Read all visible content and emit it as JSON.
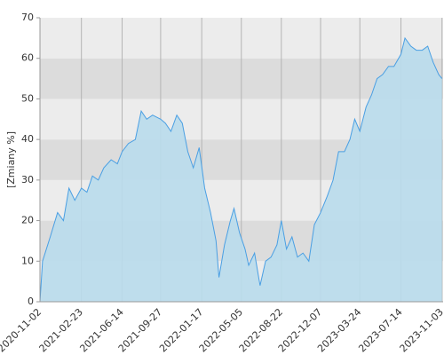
{
  "chart_data": {
    "type": "area",
    "y_label": "[Zmiany %]",
    "x": [
      "2020-11-02",
      "2020-11-09",
      "2020-11-30",
      "2020-12-20",
      "2021-01-05",
      "2021-01-20",
      "2021-02-05",
      "2021-02-23",
      "2021-03-10",
      "2021-03-25",
      "2021-04-10",
      "2021-04-25",
      "2021-05-15",
      "2021-06-01",
      "2021-06-14",
      "2021-07-01",
      "2021-07-20",
      "2021-08-05",
      "2021-08-20",
      "2021-09-05",
      "2021-09-27",
      "2021-10-10",
      "2021-10-25",
      "2021-11-10",
      "2021-11-25",
      "2021-12-10",
      "2021-12-25",
      "2022-01-10",
      "2022-01-25",
      "2022-02-10",
      "2022-02-25",
      "2022-03-05",
      "2022-03-20",
      "2022-04-05",
      "2022-04-15",
      "2022-04-30",
      "2022-05-15",
      "2022-05-25",
      "2022-06-10",
      "2022-06-25",
      "2022-07-10",
      "2022-07-25",
      "2022-08-10",
      "2022-08-22",
      "2022-09-05",
      "2022-09-20",
      "2022-10-05",
      "2022-10-20",
      "2022-11-05",
      "2022-11-20",
      "2022-12-07",
      "2022-12-25",
      "2023-01-10",
      "2023-01-25",
      "2023-02-10",
      "2023-02-25",
      "2023-03-10",
      "2023-03-24",
      "2023-04-10",
      "2023-04-25",
      "2023-05-10",
      "2023-05-25",
      "2023-06-10",
      "2023-06-25",
      "2023-07-14",
      "2023-07-25",
      "2023-08-10",
      "2023-08-25",
      "2023-09-10",
      "2023-09-25",
      "2023-10-10",
      "2023-10-25",
      "2023-11-03"
    ],
    "values": [
      0,
      10,
      16,
      22,
      20,
      28,
      25,
      28,
      27,
      31,
      30,
      33,
      35,
      34,
      37,
      39,
      40,
      47,
      45,
      46,
      45,
      44,
      42,
      46,
      44,
      37,
      33,
      38,
      28,
      22,
      15,
      6,
      14,
      20,
      23,
      17,
      13,
      9,
      12,
      4,
      10,
      11,
      14,
      20,
      13,
      16,
      11,
      12,
      10,
      19,
      22,
      26,
      30,
      37,
      37,
      40,
      45,
      42,
      48,
      51,
      55,
      56,
      58,
      58,
      61,
      65,
      63,
      62,
      62,
      63,
      59,
      56,
      55
    ],
    "color": "#4a9fe3",
    "fill": "#b9dcec",
    "xlim": [
      "2020-11-02",
      "2023-11-06"
    ],
    "xticks": [
      "2020-11-02",
      "2021-02-23",
      "2021-06-14",
      "2021-09-27",
      "2022-01-17",
      "2022-05-05",
      "2022-08-22",
      "2022-12-07",
      "2023-03-24",
      "2023-07-14",
      "2023-11-03"
    ],
    "ylim": [
      0,
      70
    ],
    "yticks": [
      0,
      10,
      20,
      30,
      40,
      50,
      60,
      70
    ],
    "grid": true
  }
}
